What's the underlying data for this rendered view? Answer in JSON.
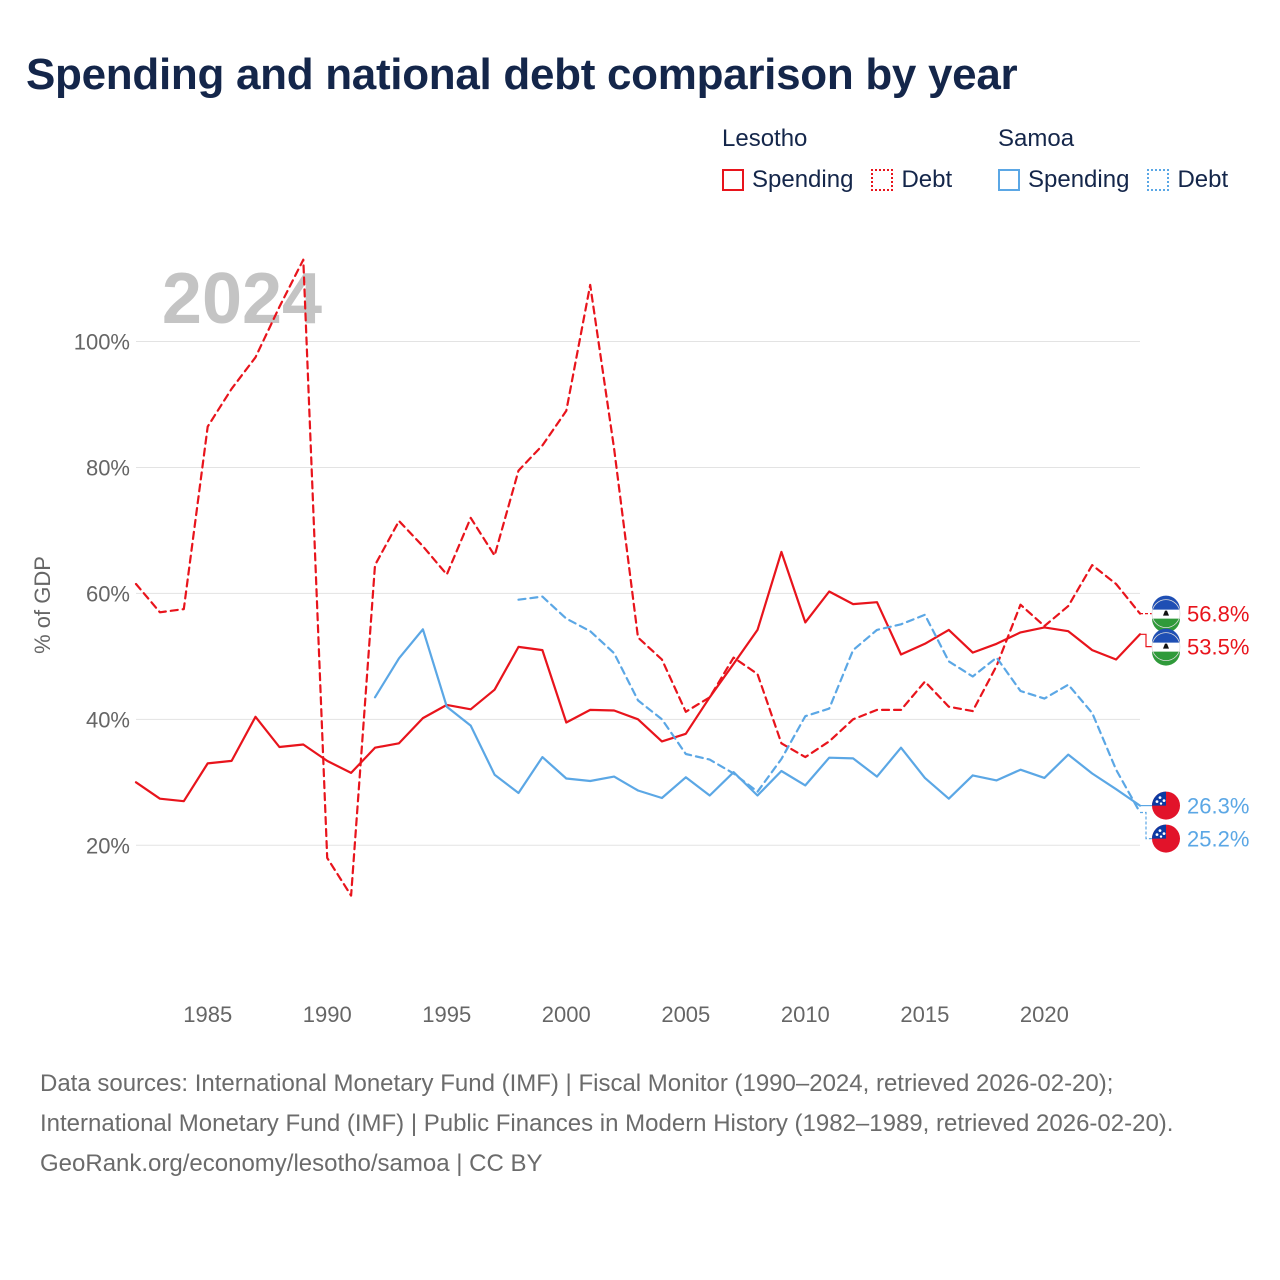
{
  "title": "Spending and national debt comparison by year",
  "legend": {
    "groups": [
      {
        "name": "Lesotho",
        "color": "#e8141c",
        "items": [
          {
            "label": "Spending",
            "style": "solid"
          },
          {
            "label": "Debt",
            "style": "dotted"
          }
        ]
      },
      {
        "name": "Samoa",
        "color": "#5ba7e5",
        "items": [
          {
            "label": "Spending",
            "style": "solid"
          },
          {
            "label": "Debt",
            "style": "dotted"
          }
        ]
      }
    ]
  },
  "chart_data": {
    "type": "line",
    "year_watermark": "2024",
    "ylabel": "% of GDP",
    "xlabel": "",
    "xlim": [
      1982,
      2024
    ],
    "ylim": [
      4,
      112
    ],
    "x_ticks": [
      1985,
      1990,
      1995,
      2000,
      2005,
      2010,
      2015,
      2020
    ],
    "y_ticks": [
      20,
      40,
      60,
      80,
      100
    ],
    "y_tick_labels": [
      "20%",
      "40%",
      "60%",
      "80%",
      "100%"
    ],
    "series": [
      {
        "name": "Lesotho Spending",
        "country": "Lesotho",
        "metric": "Spending",
        "color": "#e8141c",
        "dash": "solid",
        "x": [
          1982,
          1983,
          1984,
          1985,
          1986,
          1987,
          1988,
          1989,
          1990,
          1991,
          1992,
          1993,
          1994,
          1995,
          1996,
          1997,
          1998,
          1999,
          2000,
          2001,
          2002,
          2003,
          2004,
          2005,
          2006,
          2007,
          2008,
          2009,
          2010,
          2011,
          2012,
          2013,
          2014,
          2015,
          2016,
          2017,
          2018,
          2019,
          2020,
          2021,
          2022,
          2023,
          2024
        ],
        "values": [
          30,
          27.4,
          27,
          33,
          33.4,
          40.4,
          35.6,
          36,
          33.4,
          31.5,
          35.5,
          36.2,
          40.2,
          42.3,
          41.6,
          44.7,
          51.5,
          51,
          39.5,
          41.5,
          41.4,
          40,
          36.5,
          37.7,
          43.5,
          48.8,
          54.2,
          66.6,
          55.4,
          60.3,
          58.3,
          58.6,
          50.3,
          52,
          54.2,
          50.6,
          52,
          53.8,
          54.6,
          54,
          51,
          49.5,
          53.5
        ],
        "end_label": "53.5%"
      },
      {
        "name": "Lesotho Debt",
        "country": "Lesotho",
        "metric": "Debt",
        "color": "#e8141c",
        "dash": "dashed",
        "x": [
          1982,
          1983,
          1984,
          1985,
          1986,
          1987,
          1988,
          1989,
          1990,
          1991,
          1992,
          1993,
          1994,
          1995,
          1996,
          1997,
          1998,
          1999,
          2000,
          2001,
          2002,
          2003,
          2004,
          2005,
          2006,
          2007,
          2008,
          2009,
          2010,
          2011,
          2012,
          2013,
          2014,
          2015,
          2016,
          2017,
          2018,
          2019,
          2020,
          2021,
          2022,
          2023,
          2024
        ],
        "values": [
          61.5,
          57,
          57.5,
          86.5,
          92.5,
          97.5,
          105.5,
          113,
          18,
          12,
          64.5,
          71.5,
          67.5,
          63,
          72,
          66,
          79.5,
          83.5,
          89,
          109,
          83,
          53,
          49.5,
          41.2,
          43.5,
          49.8,
          47.2,
          36.2,
          34,
          36.5,
          40,
          41.5,
          41.5,
          46,
          42,
          41.3,
          48.5,
          58.2,
          54.8,
          58,
          64.5,
          61.5,
          56.8
        ],
        "end_label": "56.8%"
      },
      {
        "name": "Samoa Spending",
        "country": "Samoa",
        "metric": "Spending",
        "color": "#5ba7e5",
        "dash": "solid",
        "x": [
          1992,
          1993,
          1994,
          1995,
          1996,
          1997,
          1998,
          1999,
          2000,
          2001,
          2002,
          2003,
          2004,
          2005,
          2006,
          2007,
          2008,
          2009,
          2010,
          2011,
          2012,
          2013,
          2014,
          2015,
          2016,
          2017,
          2018,
          2019,
          2020,
          2021,
          2022,
          2023,
          2024
        ],
        "values": [
          43.5,
          49.7,
          54.3,
          42,
          39,
          31.2,
          28.3,
          34,
          30.6,
          30.2,
          30.9,
          28.7,
          27.5,
          30.8,
          27.9,
          31.6,
          27.9,
          31.8,
          29.5,
          33.9,
          33.8,
          30.9,
          35.5,
          30.7,
          27.4,
          31.1,
          30.3,
          32,
          30.7,
          34.4,
          31.4,
          28.9,
          26.3
        ],
        "end_label": "26.3%"
      },
      {
        "name": "Samoa Debt",
        "country": "Samoa",
        "metric": "Debt",
        "color": "#5ba7e5",
        "dash": "dashed",
        "x": [
          1998,
          1999,
          2000,
          2001,
          2002,
          2003,
          2004,
          2005,
          2006,
          2007,
          2008,
          2009,
          2010,
          2011,
          2012,
          2013,
          2014,
          2015,
          2016,
          2017,
          2018,
          2019,
          2020,
          2021,
          2022,
          2023,
          2024
        ],
        "values": [
          59,
          59.5,
          56,
          54,
          50.5,
          43,
          40,
          34.5,
          33.6,
          31.4,
          28.5,
          33.7,
          40.5,
          41.7,
          51,
          54.2,
          55.1,
          56.6,
          49.2,
          46.8,
          49.8,
          44.5,
          43.3,
          45.5,
          41,
          32,
          25.2
        ],
        "end_label": "25.2%"
      }
    ]
  },
  "footer": {
    "sources": "Data sources: International Monetary Fund (IMF) | Fiscal Monitor (1990–2024, retrieved 2026-02-20); International Monetary Fund (IMF) | Public Finances in Modern History (1982–1989, retrieved 2026-02-20).",
    "credit": "GeoRank.org/economy/lesotho/samoa | CC BY"
  }
}
